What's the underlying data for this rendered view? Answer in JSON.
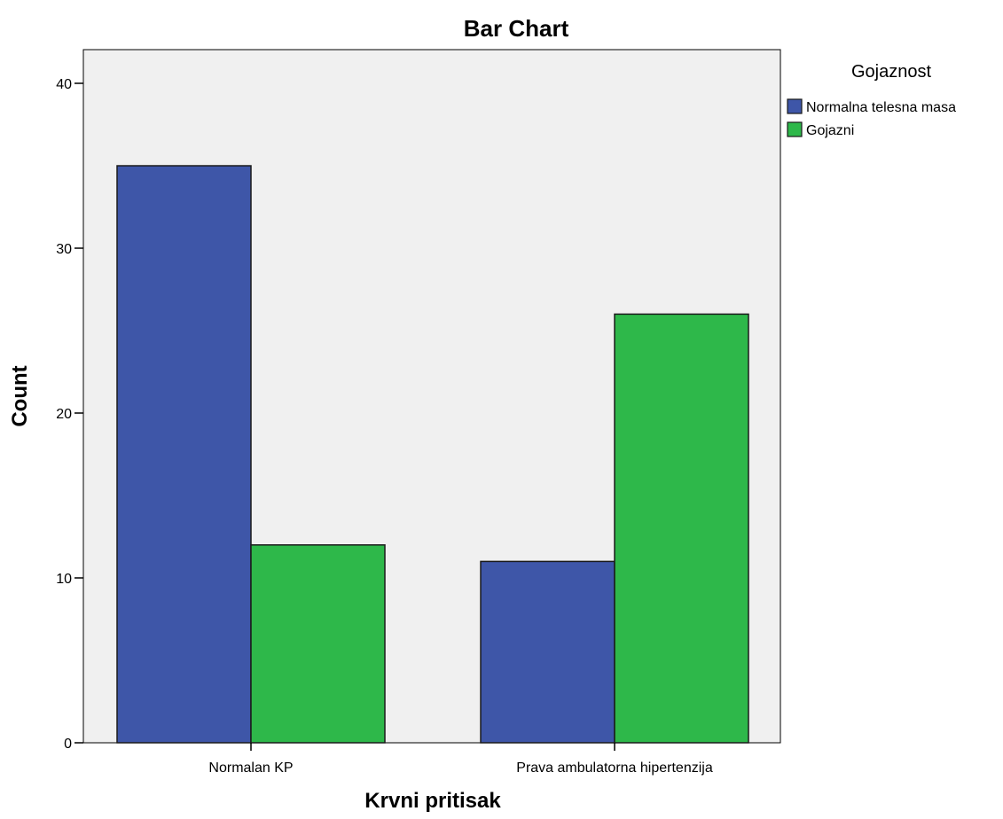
{
  "chart_data": {
    "type": "bar",
    "title": "Bar Chart",
    "xlabel": "Krvni pritisak",
    "ylabel": "Count",
    "categories": [
      "Normalan KP",
      "Prava ambulatorna hipertenzija"
    ],
    "series": [
      {
        "name": "Normalna telesna masa",
        "values": [
          35,
          11
        ],
        "color": "#3e56a8"
      },
      {
        "name": "Gojazni",
        "values": [
          12,
          26
        ],
        "color": "#2eb84a"
      }
    ],
    "yticks": [
      0,
      10,
      20,
      30,
      40
    ],
    "ylim": [
      0,
      42
    ],
    "grid": false,
    "legend": {
      "title": "Gojaznost",
      "placement": "right-top"
    },
    "colors": {
      "plot_background": "#f0f0f0",
      "axis": "#000000",
      "bar_border": "#1a1a1a"
    }
  }
}
